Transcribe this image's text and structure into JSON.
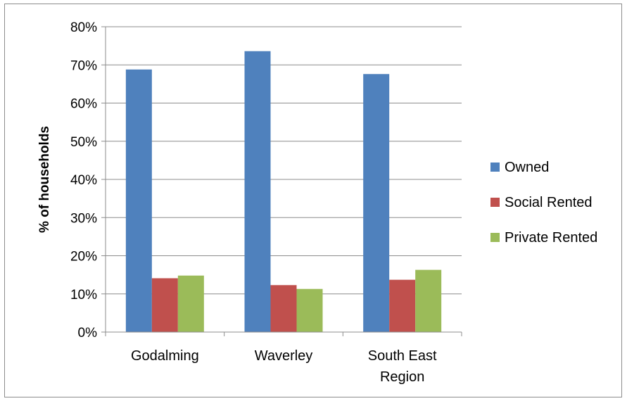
{
  "chart_data": {
    "type": "bar",
    "title": "",
    "xlabel": "",
    "ylabel": "% of households",
    "ylim": [
      0,
      80
    ],
    "yticks": [
      0,
      10,
      20,
      30,
      40,
      50,
      60,
      70,
      80
    ],
    "ytick_labels": [
      "0%",
      "10%",
      "20%",
      "30%",
      "40%",
      "50%",
      "60%",
      "70%",
      "80%"
    ],
    "categories": [
      [
        "Godalming"
      ],
      [
        "Waverley"
      ],
      [
        "South East",
        "Region"
      ]
    ],
    "series": [
      {
        "name": "Owned",
        "color": "#4f81bd",
        "values": [
          68.8,
          73.6,
          67.6
        ]
      },
      {
        "name": "Social Rented",
        "color": "#c0504d",
        "values": [
          14.1,
          12.3,
          13.7
        ]
      },
      {
        "name": "Private Rented",
        "color": "#9bbb59",
        "values": [
          14.8,
          11.3,
          16.3
        ]
      }
    ],
    "grid": true,
    "legend_position": "right"
  }
}
